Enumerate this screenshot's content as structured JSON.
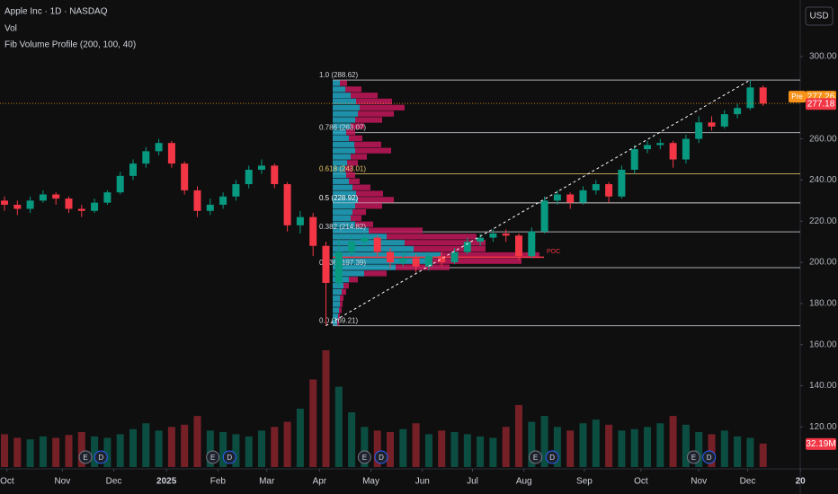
{
  "header": {
    "symbol": "Apple Inc · 1D · NASDAQ",
    "volume": "Vol",
    "indicator": "Fib Volume Profile (200, 100, 40)",
    "currency": "USD"
  },
  "chart_data": {
    "type": "candlestick",
    "up_color": "#089981",
    "down_color": "#f23645",
    "candles": [
      [
        230,
        232,
        225,
        228
      ],
      [
        228,
        230,
        223,
        226
      ],
      [
        226,
        232,
        224,
        230
      ],
      [
        230,
        235,
        229,
        233
      ],
      [
        233,
        234,
        228,
        231
      ],
      [
        231,
        232,
        224,
        226
      ],
      [
        226,
        228,
        222,
        225
      ],
      [
        225,
        231,
        224,
        229
      ],
      [
        229,
        235,
        228,
        234
      ],
      [
        234,
        244,
        233,
        242
      ],
      [
        242,
        250,
        240,
        248
      ],
      [
        248,
        256,
        246,
        254
      ],
      [
        254,
        260,
        252,
        258
      ],
      [
        258,
        259,
        246,
        248
      ],
      [
        248,
        249,
        233,
        235
      ],
      [
        235,
        237,
        222,
        225
      ],
      [
        225,
        231,
        223,
        228
      ],
      [
        228,
        234,
        226,
        232
      ],
      [
        232,
        240,
        230,
        238
      ],
      [
        238,
        247,
        236,
        245
      ],
      [
        245,
        250,
        243,
        247
      ],
      [
        247,
        248,
        236,
        238
      ],
      [
        238,
        239,
        215,
        218
      ],
      [
        218,
        225,
        214,
        222
      ],
      [
        222,
        224,
        203,
        208
      ],
      [
        208,
        210,
        169.21,
        190
      ],
      [
        190,
        212,
        188,
        205
      ],
      [
        205,
        213,
        203,
        210
      ],
      [
        210,
        214,
        207,
        212
      ],
      [
        212,
        213,
        203,
        205
      ],
      [
        205,
        207,
        197,
        200
      ],
      [
        200,
        205,
        198,
        202
      ],
      [
        202,
        204,
        195,
        198
      ],
      [
        198,
        205,
        196,
        203
      ],
      [
        203,
        205,
        198,
        200
      ],
      [
        200,
        207,
        199,
        205
      ],
      [
        205,
        212,
        204,
        210
      ],
      [
        210,
        214,
        208,
        212
      ],
      [
        212,
        216,
        210,
        214
      ],
      [
        214,
        216,
        210,
        213
      ],
      [
        213,
        214,
        201,
        203
      ],
      [
        203,
        217,
        202,
        215
      ],
      [
        215,
        232,
        214,
        230
      ],
      [
        230,
        235,
        228,
        233
      ],
      [
        233,
        234,
        226,
        229
      ],
      [
        229,
        237,
        228,
        235
      ],
      [
        235,
        240,
        233,
        238
      ],
      [
        238,
        239,
        229,
        232
      ],
      [
        232,
        247,
        231,
        245
      ],
      [
        245,
        257,
        243,
        255
      ],
      [
        255,
        259,
        253,
        257
      ],
      [
        257,
        260,
        255,
        258
      ],
      [
        258,
        259,
        246,
        250
      ],
      [
        250,
        262,
        248,
        260
      ],
      [
        260,
        271,
        258,
        268
      ],
      [
        268,
        271,
        264,
        266
      ],
      [
        266,
        274,
        265,
        272
      ],
      [
        272,
        277,
        270,
        275
      ],
      [
        275,
        288.62,
        274,
        285
      ],
      [
        285,
        286,
        276,
        277.18
      ]
    ],
    "volumes": [
      45,
      40,
      38,
      42,
      40,
      44,
      48,
      42,
      40,
      45,
      52,
      60,
      50,
      55,
      58,
      70,
      50,
      48,
      45,
      42,
      50,
      55,
      62,
      80,
      120,
      160,
      110,
      75,
      55,
      50,
      48,
      52,
      60,
      45,
      50,
      48,
      45,
      42,
      40,
      55,
      85,
      62,
      70,
      55,
      50,
      60,
      65,
      58,
      50,
      52,
      55,
      60,
      70,
      58,
      48,
      45,
      50,
      42,
      40,
      32.19
    ],
    "volume_label": "32.19M",
    "ylim": [
      100.5,
      327.5
    ],
    "y2lim": [
      0,
      320
    ],
    "yticks": [
      {
        "value": 300,
        "label": "300.00"
      },
      {
        "value": 260,
        "label": "260.00"
      },
      {
        "value": 240,
        "label": "240.00"
      },
      {
        "value": 220,
        "label": "220.00"
      },
      {
        "value": 200,
        "label": "200.00"
      },
      {
        "value": 180,
        "label": "180.00"
      },
      {
        "value": 160,
        "label": "160.00"
      },
      {
        "value": 140,
        "label": "140.00"
      },
      {
        "value": 120,
        "label": "120.00"
      }
    ],
    "xticks": [
      {
        "value": 0.2,
        "label": "Oct"
      },
      {
        "value": 4.5,
        "label": "Nov"
      },
      {
        "value": 8.5,
        "label": "Dec"
      },
      {
        "value": 12.6,
        "label": "2025"
      },
      {
        "value": 16.6,
        "label": "Feb"
      },
      {
        "value": 20.4,
        "label": "Mar"
      },
      {
        "value": 24.5,
        "label": "Apr"
      },
      {
        "value": 28.5,
        "label": "May"
      },
      {
        "value": 32.5,
        "label": "Jun"
      },
      {
        "value": 36.4,
        "label": "Jul"
      },
      {
        "value": 40.4,
        "label": "Aug"
      },
      {
        "value": 45.1,
        "label": "Sep"
      },
      {
        "value": 49.5,
        "label": "Oct"
      },
      {
        "value": 54,
        "label": "Nov"
      },
      {
        "value": 57.8,
        "label": "Dec"
      },
      {
        "value": 61.9,
        "label": "20"
      }
    ],
    "fib_levels": [
      {
        "label": "1.0 (288.62)",
        "value": 288.62,
        "color": "#d1d4dc"
      },
      {
        "label": "0.786 (263.07)",
        "value": 263.07,
        "color": "#d1d4dc"
      },
      {
        "label": "0.618 (243.01)",
        "value": 243.01,
        "color": "#e8c56a"
      },
      {
        "label": "0.5 (228.92)",
        "value": 228.92,
        "color": "#ffffff"
      },
      {
        "label": "0.382 (214.82)",
        "value": 214.82,
        "color": "#d1d4dc"
      },
      {
        "label": "0.236 (197.39)",
        "value": 197.39,
        "color": "#d1d4dc"
      },
      {
        "label": "0.0 (169.21)",
        "value": 169.21,
        "color": "#d1d4dc"
      }
    ],
    "profile": {
      "levels": [
        170.7,
        173.7,
        176.7,
        179.7,
        182.6,
        185.6,
        188.6,
        191.6,
        194.6,
        197.6,
        200.6,
        203.5,
        206.5,
        209.5,
        212.5,
        215.5,
        218.5,
        221.5,
        224.4,
        227.4,
        230.4,
        233.4,
        236.4,
        239.4,
        242.4,
        245.3,
        248.3,
        251.3,
        254.3,
        257.3,
        260.3,
        263.2,
        266.2,
        269.2,
        272.2,
        275.2,
        278.2,
        281.1,
        284.1,
        287.1
      ],
      "up": [
        5,
        6,
        7,
        8,
        8,
        10,
        12,
        18,
        35,
        70,
        110,
        120,
        90,
        80,
        60,
        40,
        25,
        20,
        22,
        25,
        28,
        26,
        22,
        18,
        15,
        14,
        16,
        20,
        25,
        24,
        18,
        15,
        20,
        25,
        28,
        30,
        26,
        20,
        14,
        8
      ],
      "down": [
        2,
        2,
        3,
        3,
        4,
        5,
        6,
        10,
        25,
        60,
        100,
        110,
        80,
        90,
        100,
        60,
        20,
        12,
        15,
        30,
        40,
        30,
        20,
        12,
        10,
        8,
        12,
        18,
        40,
        30,
        15,
        10,
        15,
        30,
        40,
        50,
        40,
        30,
        18,
        8
      ],
      "up_color": "#22a7c4",
      "down_color": "#c2185b"
    },
    "poc": {
      "label": "POC",
      "value": 202.5
    },
    "pre_market": {
      "label": "Pre",
      "value": 277.26
    },
    "events": [
      {
        "label": "E",
        "x": 6.3
      },
      {
        "label": "D",
        "x": 7.5
      },
      {
        "label": "E",
        "x": 16.2
      },
      {
        "label": "D",
        "x": 17.5
      },
      {
        "label": "E",
        "x": 28.0
      },
      {
        "label": "D",
        "x": 29.3
      },
      {
        "label": "E",
        "x": 41.3
      },
      {
        "label": "D",
        "x": 42.6
      },
      {
        "label": "E",
        "x": 53.6
      },
      {
        "label": "D",
        "x": 54.8
      }
    ]
  }
}
